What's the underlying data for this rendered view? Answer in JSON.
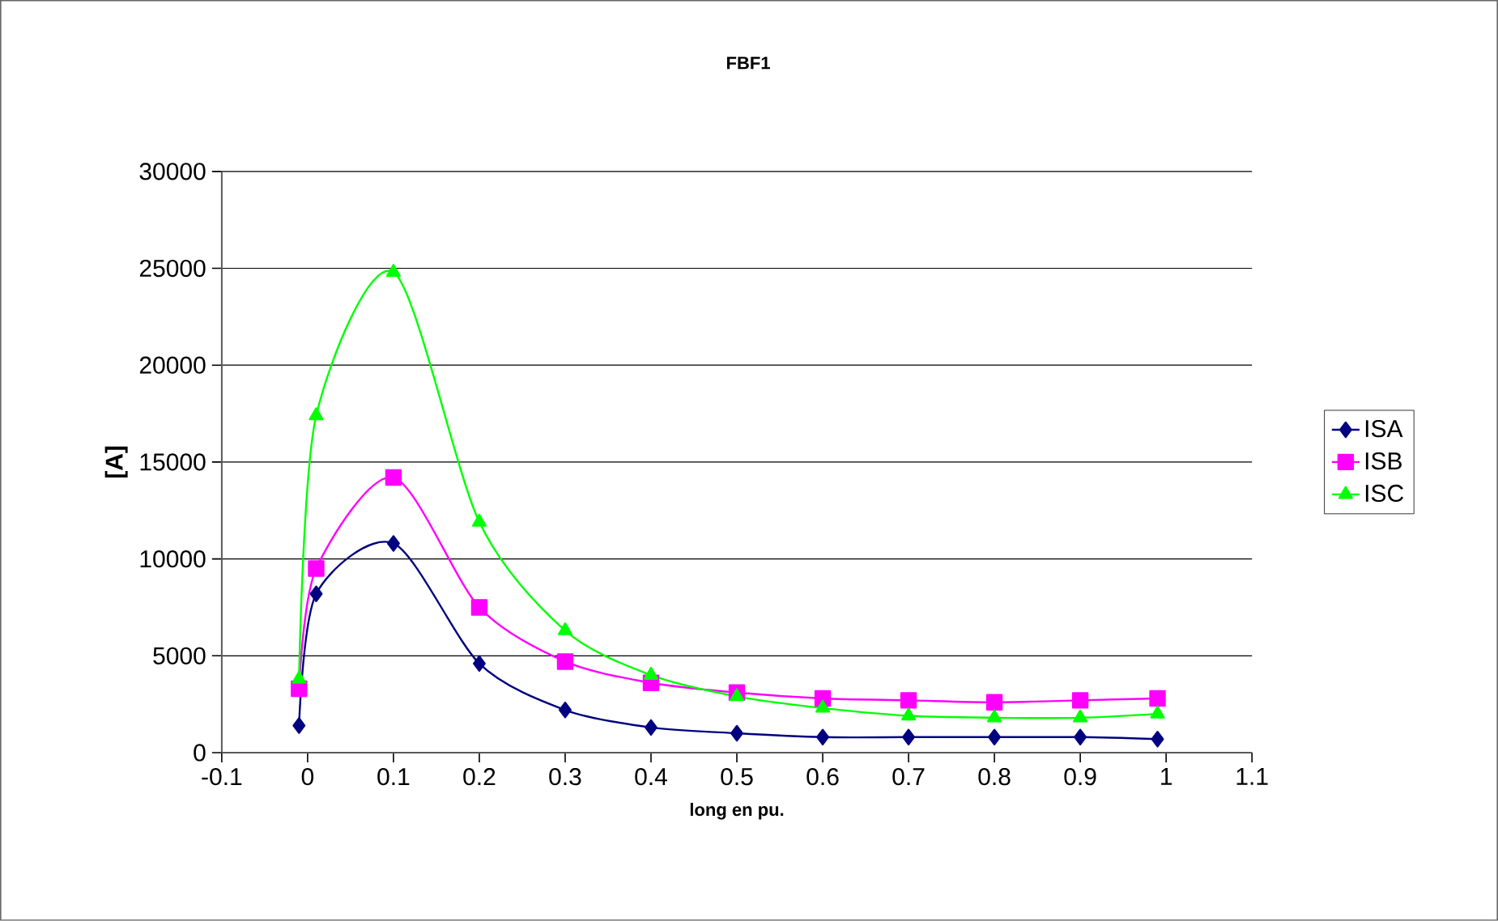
{
  "chart_data": {
    "type": "line",
    "title": "FBF1",
    "xlabel": "long en pu.",
    "ylabel": "[A]",
    "x": [
      -0.01,
      0.01,
      0.1,
      0.2,
      0.3,
      0.4,
      0.5,
      0.6,
      0.7,
      0.8,
      0.9,
      0.99
    ],
    "series": [
      {
        "name": "ISA",
        "color": "#000080",
        "marker": "diamond",
        "values": [
          1400,
          8200,
          10800,
          4600,
          2200,
          1300,
          1000,
          800,
          800,
          800,
          800,
          700
        ]
      },
      {
        "name": "ISB",
        "color": "#ff00ff",
        "marker": "square",
        "values": [
          3300,
          9500,
          14200,
          7500,
          4700,
          3600,
          3100,
          2800,
          2700,
          2600,
          2700,
          2800
        ]
      },
      {
        "name": "ISC",
        "color": "#00ff00",
        "marker": "triangle",
        "values": [
          3800,
          17400,
          24800,
          11900,
          6300,
          4000,
          2900,
          2300,
          1900,
          1800,
          1800,
          2000
        ]
      }
    ],
    "xlim": [
      -0.1,
      1.1
    ],
    "xticks": [
      -0.1,
      0,
      0.1,
      0.2,
      0.3,
      0.4,
      0.5,
      0.6,
      0.7,
      0.8,
      0.9,
      1,
      1.1
    ],
    "ylim": [
      0,
      30000
    ],
    "yticks": [
      0,
      5000,
      10000,
      15000,
      20000,
      25000,
      30000
    ],
    "grid": "y",
    "legend": "right",
    "line_style": "solid"
  }
}
